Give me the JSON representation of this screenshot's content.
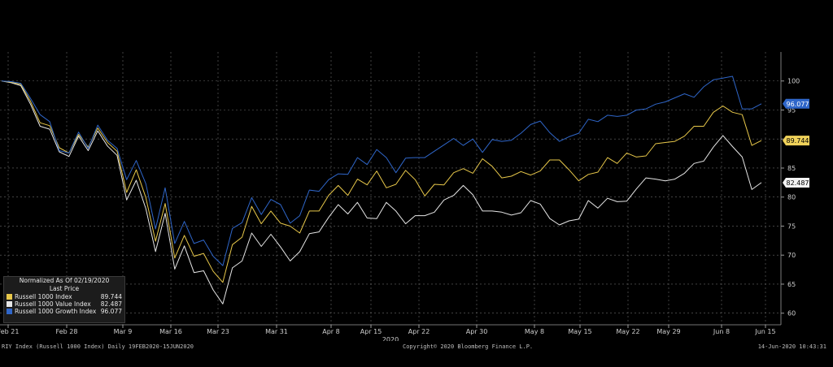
{
  "chart_data": {
    "type": "line",
    "x_labels": [
      "Feb 21",
      "Feb 28",
      "Mar 9",
      "Mar 16",
      "Mar 23",
      "Mar 31",
      "Apr 8",
      "Apr 15",
      "Apr 22",
      "Apr 30",
      "May 8",
      "May 15",
      "May 22",
      "May 29",
      "Jun 8",
      "Jun 15"
    ],
    "x_year_label": "2020",
    "y_ticks": [
      60,
      65,
      70,
      75,
      80,
      85,
      90,
      95,
      100
    ],
    "ylim": [
      58,
      105
    ],
    "grid": true,
    "series": [
      {
        "name": "Russell 1000 Index",
        "color": "#e8c84a",
        "last_value": "89.744",
        "values": [
          100,
          99.8,
          99.4,
          96.5,
          92.8,
          92.3,
          88.5,
          87.6,
          90.8,
          88.6,
          91.9,
          89.4,
          87.9,
          80.8,
          84.7,
          79.9,
          72.4,
          78.9,
          69.5,
          73.4,
          69.8,
          70.3,
          67.2,
          65.3,
          71.8,
          73.1,
          78.4,
          75.4,
          77.6,
          75.5,
          75.0,
          73.8,
          77.6,
          77.6,
          80.3,
          82.0,
          80.3,
          83.1,
          82.1,
          84.5,
          81.6,
          82.2,
          84.6,
          83.0,
          80.2,
          82.2,
          82.1,
          84.2,
          84.9,
          84.1,
          86.6,
          85.3,
          83.3,
          83.6,
          84.4,
          83.8,
          84.5,
          86.4,
          86.4,
          84.7,
          82.8,
          83.9,
          84.3,
          86.8,
          85.8,
          87.6,
          86.9,
          87.1,
          89.2,
          89.4,
          89.6,
          90.5,
          92.2,
          92.2,
          94.6,
          95.7,
          94.6,
          94.2,
          88.9,
          89.744
        ]
      },
      {
        "name": "Russell 1000 Value Index",
        "color": "#e6e6e6",
        "last_value": "82.487",
        "values": [
          100,
          99.7,
          99.2,
          96.0,
          92.2,
          91.7,
          87.8,
          87.0,
          90.5,
          88.0,
          91.4,
          88.8,
          87.2,
          79.5,
          82.9,
          78.0,
          70.6,
          77.2,
          67.6,
          71.6,
          67.0,
          67.3,
          64.0,
          61.6,
          67.8,
          69.0,
          73.8,
          71.5,
          73.6,
          71.4,
          69.0,
          70.6,
          73.7,
          74.0,
          76.5,
          78.7,
          77.1,
          79.1,
          76.4,
          76.3,
          79.1,
          77.6,
          75.4,
          76.8,
          76.8,
          77.4,
          79.5,
          80.3,
          82.0,
          80.4,
          77.6,
          77.6,
          77.4,
          76.9,
          77.3,
          79.4,
          78.8,
          76.3,
          75.2,
          75.9,
          76.2,
          79.4,
          78.1,
          79.8,
          79.2,
          79.3,
          81.4,
          83.3,
          83.1,
          82.8,
          83.1,
          84.1,
          85.8,
          86.2,
          88.6,
          90.6,
          88.7,
          86.9,
          81.3,
          82.487
        ]
      },
      {
        "name": "Russell 1000 Growth Index",
        "color": "#2f66c9",
        "last_value": "96.077",
        "values": [
          100,
          99.9,
          99.6,
          97.0,
          94.2,
          93.0,
          88.0,
          87.6,
          91.2,
          88.4,
          92.4,
          89.8,
          88.4,
          83.0,
          86.3,
          82.3,
          74.5,
          81.6,
          72.0,
          75.8,
          72.0,
          72.6,
          69.8,
          68.2,
          74.6,
          75.6,
          79.9,
          77.0,
          79.6,
          78.7,
          75.5,
          76.8,
          81.2,
          81.0,
          83.0,
          84.0,
          83.9,
          86.8,
          85.6,
          88.2,
          86.8,
          84.2,
          86.7,
          86.8,
          86.8,
          87.9,
          89.0,
          90.1,
          88.9,
          90.0,
          87.7,
          89.9,
          89.6,
          89.8,
          91.0,
          92.5,
          93.1,
          91.1,
          89.6,
          90.4,
          91.0,
          93.4,
          93.0,
          94.1,
          93.9,
          94.1,
          95.0,
          95.2,
          96.0,
          96.4,
          97.1,
          97.8,
          97.2,
          99.0,
          100.2,
          100.5,
          100.8,
          95.2,
          95.2,
          96.077
        ]
      }
    ],
    "legend": {
      "position": "bottom-left",
      "title": "Normalized As Of 02/19/2020",
      "subtitle": "Last Price"
    }
  },
  "footer": {
    "left": "RIY Index (Russell 1000 Index)  Daily 19FEB2020-15JUN2020",
    "center": "Copyright© 2020 Bloomberg Finance L.P.",
    "right": "14-Jun-2020 10:43:31"
  }
}
